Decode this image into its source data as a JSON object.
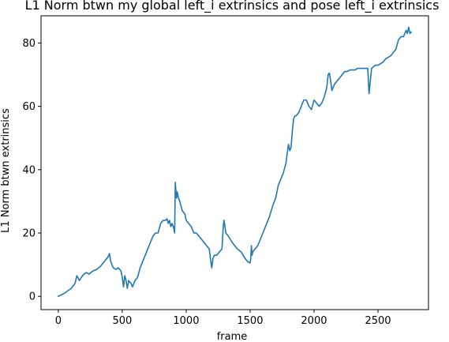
{
  "chart_data": {
    "type": "line",
    "title": "L1 Norm btwn my global left_i extrinsics and pose left_i extrinsics",
    "xlabel": "frame",
    "ylabel": "L1 Norm btwn extrinsics",
    "xlim": [
      -135,
      2895
    ],
    "ylim": [
      -4.2,
      88.6
    ],
    "xticks": [
      0,
      500,
      1000,
      1500,
      2000,
      2500
    ],
    "yticks": [
      0,
      20,
      40,
      60,
      80
    ],
    "grid": false,
    "series_color": "#1f77b4",
    "series": [
      {
        "x": [
          0,
          50,
          100,
          130,
          145,
          165,
          180,
          200,
          220,
          240,
          270,
          300,
          330,
          360,
          390,
          400,
          410,
          420,
          430,
          450,
          470,
          490,
          500,
          510,
          520,
          530,
          540,
          550,
          560,
          570,
          580,
          600,
          620,
          640,
          660,
          680,
          700,
          720,
          740,
          760,
          780,
          800,
          820,
          840,
          850,
          860,
          870,
          880,
          890,
          900,
          910,
          915,
          920,
          925,
          930,
          940,
          950,
          970,
          990,
          1000,
          1020,
          1040,
          1060,
          1080,
          1100,
          1120,
          1140,
          1160,
          1180,
          1190,
          1200,
          1210,
          1220,
          1240,
          1260,
          1280,
          1290,
          1295,
          1300,
          1310,
          1330,
          1360,
          1400,
          1430,
          1460,
          1480,
          1500,
          1505,
          1510,
          1515,
          1520,
          1540,
          1560,
          1580,
          1600,
          1620,
          1650,
          1680,
          1700,
          1720,
          1740,
          1760,
          1780,
          1800,
          1810,
          1820,
          1830,
          1840,
          1850,
          1860,
          1880,
          1900,
          1920,
          1940,
          1960,
          1980,
          2000,
          2020,
          2040,
          2060,
          2080,
          2100,
          2110,
          2120,
          2130,
          2140,
          2160,
          2180,
          2200,
          2220,
          2240,
          2260,
          2280,
          2300,
          2320,
          2340,
          2360,
          2380,
          2400,
          2410,
          2420,
          2430,
          2450,
          2480,
          2500,
          2520,
          2540,
          2560,
          2580,
          2600,
          2620,
          2640,
          2660,
          2680,
          2700,
          2710,
          2720,
          2730,
          2740,
          2750,
          2760
        ],
        "y": [
          0,
          1,
          2.5,
          4,
          6.5,
          5,
          6,
          7,
          7.5,
          7,
          8,
          8.5,
          9.5,
          11,
          12.5,
          13.5,
          11,
          10,
          9,
          8.5,
          9,
          8,
          6,
          3,
          6.5,
          5,
          2.5,
          5,
          4.5,
          4,
          3,
          5,
          6,
          9,
          11,
          13,
          15,
          17,
          19,
          20,
          20,
          23,
          24,
          24,
          24.5,
          23,
          24,
          22,
          23,
          22,
          20,
          36,
          33,
          31,
          33,
          31,
          30,
          27,
          26,
          24,
          23,
          22,
          20,
          20,
          19,
          18,
          17,
          16,
          15,
          12,
          9,
          12,
          13,
          13,
          14,
          15,
          22,
          24,
          23,
          20,
          19,
          17,
          15,
          14,
          12,
          11,
          10.5,
          12,
          16,
          13,
          14,
          15,
          16,
          18,
          20,
          22,
          25,
          29,
          31,
          35,
          37,
          39,
          42,
          48,
          46,
          47,
          52,
          56,
          57,
          57,
          58,
          60,
          62,
          62,
          60,
          59,
          62,
          61,
          60,
          61,
          63,
          66,
          70,
          70.5,
          68,
          65,
          67,
          68,
          69,
          70,
          71,
          71,
          71.5,
          71.5,
          71.5,
          72,
          72,
          72,
          72,
          72,
          72,
          64,
          72,
          73,
          73,
          73.5,
          74,
          75,
          75.5,
          76,
          77,
          78,
          81,
          82,
          82,
          83,
          84,
          83,
          85,
          83,
          83.5
        ]
      }
    ]
  }
}
